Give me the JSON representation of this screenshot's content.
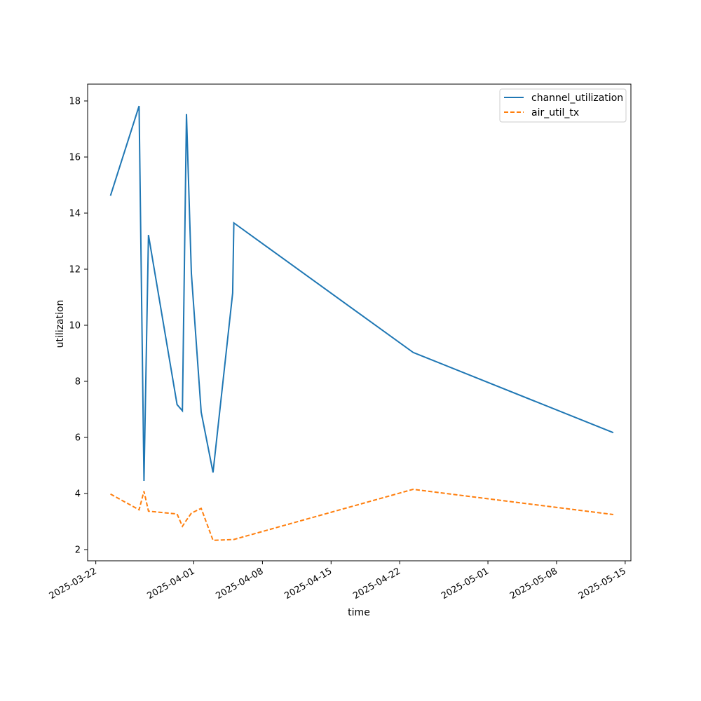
{
  "chart_data": {
    "type": "line",
    "title": "",
    "xlabel": "time",
    "ylabel": "utilization",
    "x_type": "date",
    "xlim": [
      "2025-03-21T04:00",
      "2025-05-15T14:00"
    ],
    "ylim": [
      1.6,
      18.6
    ],
    "x_ticks": [
      "2025-03-22",
      "2025-04-01",
      "2025-04-08",
      "2025-04-15",
      "2025-04-22",
      "2025-05-01",
      "2025-05-08",
      "2025-05-15"
    ],
    "y_ticks": [
      2,
      4,
      6,
      8,
      10,
      12,
      14,
      16,
      18
    ],
    "grid": false,
    "legend_position": "top-right",
    "x": [
      "2025-03-23T12:00",
      "2025-03-26T10:00",
      "2025-03-26T22:00",
      "2025-03-27T09:00",
      "2025-03-30T07:00",
      "2025-03-30T20:00",
      "2025-03-31T06:00",
      "2025-03-31T18:00",
      "2025-04-01T18:00",
      "2025-04-02T23:00",
      "2025-04-04T23:00",
      "2025-04-05T02:00",
      "2025-04-23T09:00",
      "2025-05-13T19:00"
    ],
    "series": [
      {
        "name": "channel_utilization",
        "color": "#1f77b4",
        "style": "solid",
        "values": [
          14.62,
          17.82,
          4.45,
          13.22,
          7.17,
          6.95,
          17.53,
          11.85,
          6.9,
          4.75,
          11.15,
          13.65,
          9.03,
          6.17
        ]
      },
      {
        "name": "air_util_tx",
        "color": "#ff7f0e",
        "style": "dashed",
        "values": [
          3.98,
          3.42,
          4.08,
          3.37,
          3.27,
          2.83,
          3.05,
          3.3,
          3.47,
          2.33,
          2.36,
          2.36,
          4.15,
          3.25
        ]
      }
    ]
  }
}
